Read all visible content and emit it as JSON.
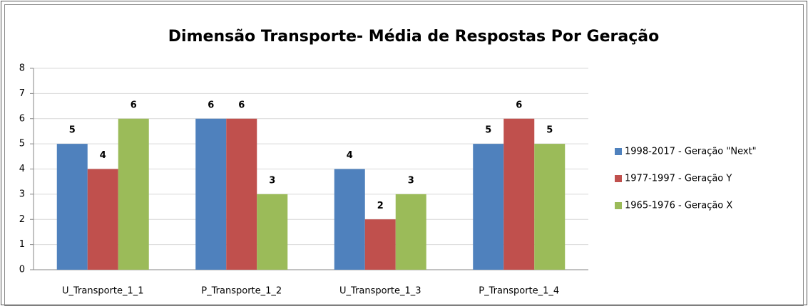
{
  "chart_data": {
    "type": "bar",
    "title": "Dimensão Transporte- Média de Respostas Por Geração",
    "categories": [
      "U_Transporte_1_1",
      "P_Transporte_1_2",
      "U_Transporte_1_3",
      "P_Transporte_1_4"
    ],
    "series": [
      {
        "name": "1998-2017 - Geração \"Next\"",
        "color": "#4f81bd",
        "values": [
          5,
          6,
          4,
          5
        ]
      },
      {
        "name": "1977-1997 - Geração Y",
        "color": "#c0504d",
        "values": [
          4,
          6,
          2,
          6
        ]
      },
      {
        "name": "1965-1976 - Geração X",
        "color": "#9bbb59",
        "values": [
          6,
          3,
          3,
          5
        ]
      }
    ],
    "ylim": [
      0,
      8
    ],
    "yticks": [
      0,
      1,
      2,
      3,
      4,
      5,
      6,
      7,
      8
    ],
    "grid": true,
    "legend": "right"
  }
}
